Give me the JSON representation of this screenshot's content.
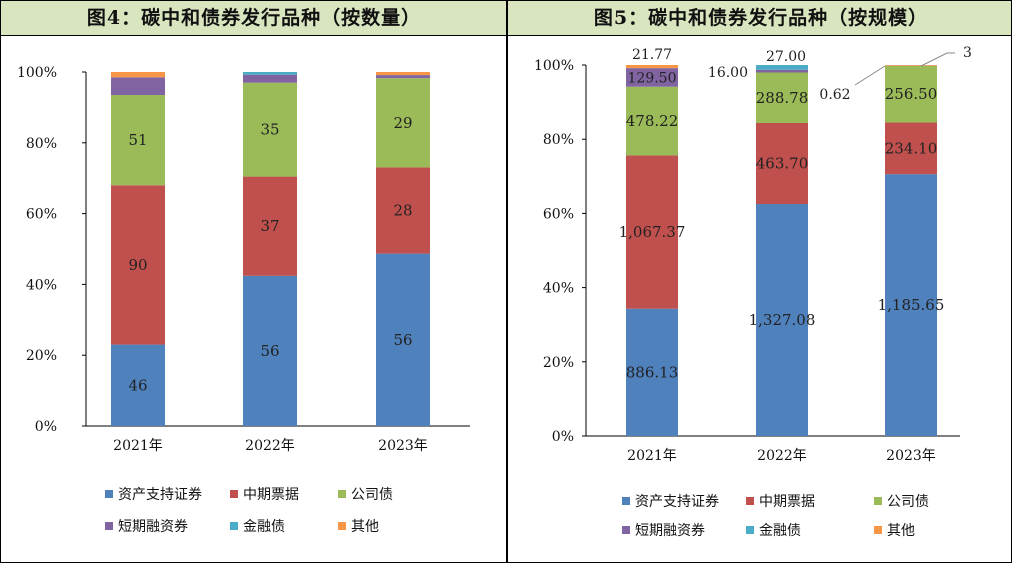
{
  "chart_data": [
    {
      "type": "bar",
      "stacked": "percent",
      "title": "图4：碳中和债券发行品种（按数量）",
      "categories": [
        "2021年",
        "2022年",
        "2023年"
      ],
      "y_ticks": [
        "0%",
        "20%",
        "40%",
        "60%",
        "80%",
        "100%"
      ],
      "ylim": [
        0,
        100
      ],
      "series": [
        {
          "name": "资产支持证券",
          "color": "#4f81bd",
          "values": [
            46,
            56,
            56
          ],
          "labels": [
            "46",
            "56",
            "56"
          ]
        },
        {
          "name": "中期票据",
          "color": "#c0504d",
          "values": [
            90,
            37,
            28
          ],
          "labels": [
            "90",
            "37",
            "28"
          ]
        },
        {
          "name": "公司债",
          "color": "#9bbb59",
          "values": [
            51,
            35,
            29
          ],
          "labels": [
            "51",
            "35",
            "29"
          ]
        },
        {
          "name": "短期融资券",
          "color": "#8064a2",
          "values": [
            10,
            3,
            1
          ],
          "labels": [
            "",
            "",
            ""
          ]
        },
        {
          "name": "金融债",
          "color": "#4bacc6",
          "values": [
            0,
            1,
            0
          ],
          "labels": [
            "",
            "",
            ""
          ]
        },
        {
          "name": "其他",
          "color": "#f79646",
          "values": [
            3,
            0,
            1
          ],
          "labels": [
            "",
            "",
            ""
          ]
        }
      ],
      "legend_position": "bottom",
      "grid": false
    },
    {
      "type": "bar",
      "stacked": "percent",
      "title": "图5：碳中和债券发行品种（按规模）",
      "categories": [
        "2021年",
        "2022年",
        "2023年"
      ],
      "y_ticks": [
        "0%",
        "20%",
        "40%",
        "60%",
        "80%",
        "100%"
      ],
      "ylim": [
        0,
        100
      ],
      "series": [
        {
          "name": "资产支持证券",
          "color": "#4f81bd",
          "values": [
            886.13,
            1327.08,
            1185.65
          ],
          "labels": [
            "886.13",
            "1,327.08",
            "1,185.65"
          ]
        },
        {
          "name": "中期票据",
          "color": "#c0504d",
          "values": [
            1067.37,
            463.7,
            234.1
          ],
          "labels": [
            "1,067.37",
            "463.70",
            "234.10"
          ]
        },
        {
          "name": "公司债",
          "color": "#9bbb59",
          "values": [
            478.22,
            288.78,
            256.5
          ],
          "labels": [
            "478.22",
            "288.78",
            "256.50"
          ]
        },
        {
          "name": "短期融资券",
          "color": "#8064a2",
          "values": [
            129.5,
            16.0,
            0.62
          ],
          "labels": [
            "129.50",
            "16.00",
            "0.62"
          ]
        },
        {
          "name": "金融债",
          "color": "#4bacc6",
          "values": [
            0,
            27.0,
            0
          ],
          "labels": [
            "",
            "27.00",
            ""
          ]
        },
        {
          "name": "其他",
          "color": "#f79646",
          "values": [
            21.77,
            0,
            3
          ],
          "labels": [
            "21.77",
            "",
            "3"
          ]
        }
      ],
      "legend_position": "bottom",
      "grid": false
    }
  ]
}
